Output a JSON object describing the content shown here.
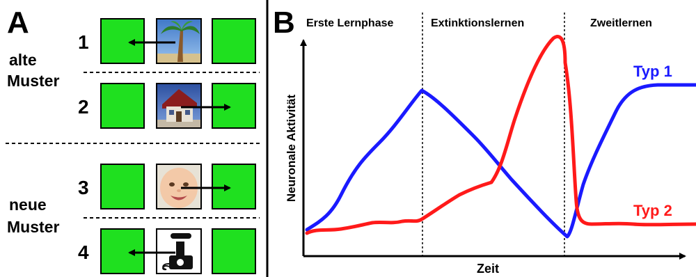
{
  "panel_a": {
    "label": "A",
    "group_old_label_line1": "alte",
    "group_old_label_line2": "Muster",
    "group_new_label_line1": "neue",
    "group_new_label_line2": "Muster",
    "rows": [
      {
        "number": "1",
        "picture": "palm-tree-icon",
        "arrow": "left"
      },
      {
        "number": "2",
        "picture": "house-icon",
        "arrow": "right"
      },
      {
        "number": "3",
        "picture": "baby-face-icon",
        "arrow": "right"
      },
      {
        "number": "4",
        "picture": "telephone-icon",
        "arrow": "left"
      }
    ],
    "colors": {
      "square": "#1fe01f",
      "line": "#000000"
    }
  },
  "panel_b": {
    "label": "B",
    "phases": [
      "Erste Lernphase",
      "Extinktionslernen",
      "Zweitlernen"
    ],
    "x_axis_label": "Zeit",
    "y_axis_label": "Neuronale Aktivität",
    "series": [
      {
        "name": "Typ 1",
        "color": "#1a1aff"
      },
      {
        "name": "Typ 2",
        "color": "#ff1a1a"
      }
    ]
  }
}
